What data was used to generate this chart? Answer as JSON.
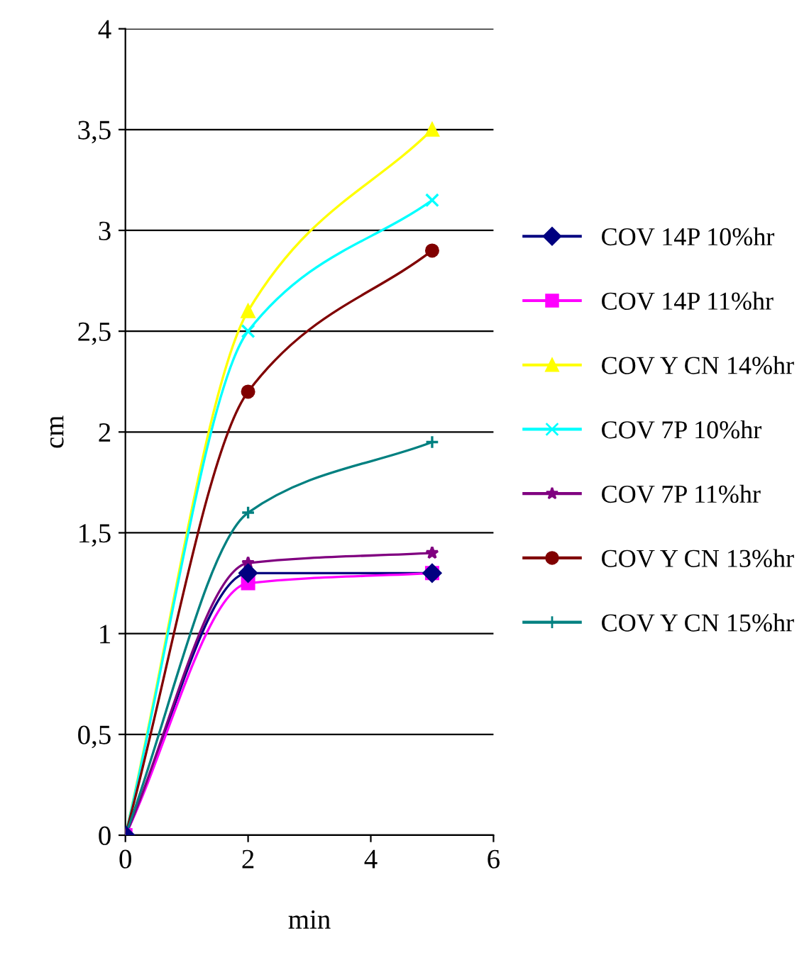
{
  "chart_data": {
    "type": "line",
    "xlabel": "min",
    "ylabel": "cm",
    "x": [
      0,
      2,
      5
    ],
    "series": [
      {
        "name": "COV 14P 10%hr",
        "color": "#000080",
        "marker": "diamond",
        "values": [
          0,
          1.3,
          1.3
        ]
      },
      {
        "name": "COV 14P 11%hr",
        "color": "#ff00ff",
        "marker": "square",
        "values": [
          0,
          1.25,
          1.3
        ]
      },
      {
        "name": "COV Y CN 14%hr",
        "color": "#ffff00",
        "marker": "triangle",
        "values": [
          0,
          2.6,
          3.5
        ]
      },
      {
        "name": "COV 7P 10%hr",
        "color": "#00ffff",
        "marker": "cross",
        "values": [
          0,
          2.5,
          3.15
        ]
      },
      {
        "name": "COV 7P 11%hr",
        "color": "#800080",
        "marker": "star",
        "values": [
          0,
          1.35,
          1.4
        ]
      },
      {
        "name": "COV Y CN 13%hr",
        "color": "#800000",
        "marker": "circle",
        "values": [
          0,
          2.2,
          2.9
        ]
      },
      {
        "name": "COV Y CN 15%hr",
        "color": "#008080",
        "marker": "plus",
        "values": [
          0,
          1.6,
          1.95
        ]
      }
    ],
    "xlim": [
      0,
      6
    ],
    "xticks": [
      0,
      2,
      4,
      6
    ],
    "ylim": [
      0,
      4
    ],
    "yticks": [
      0,
      {
        "value": 0.5,
        "label": "0,5"
      },
      1,
      {
        "value": 1.5,
        "label": "1,5"
      },
      2,
      {
        "value": 2.5,
        "label": "2,5"
      },
      3,
      {
        "value": 3.5,
        "label": "3,5"
      },
      4
    ],
    "grid": "y",
    "legend": "right",
    "line_style": "solid"
  }
}
